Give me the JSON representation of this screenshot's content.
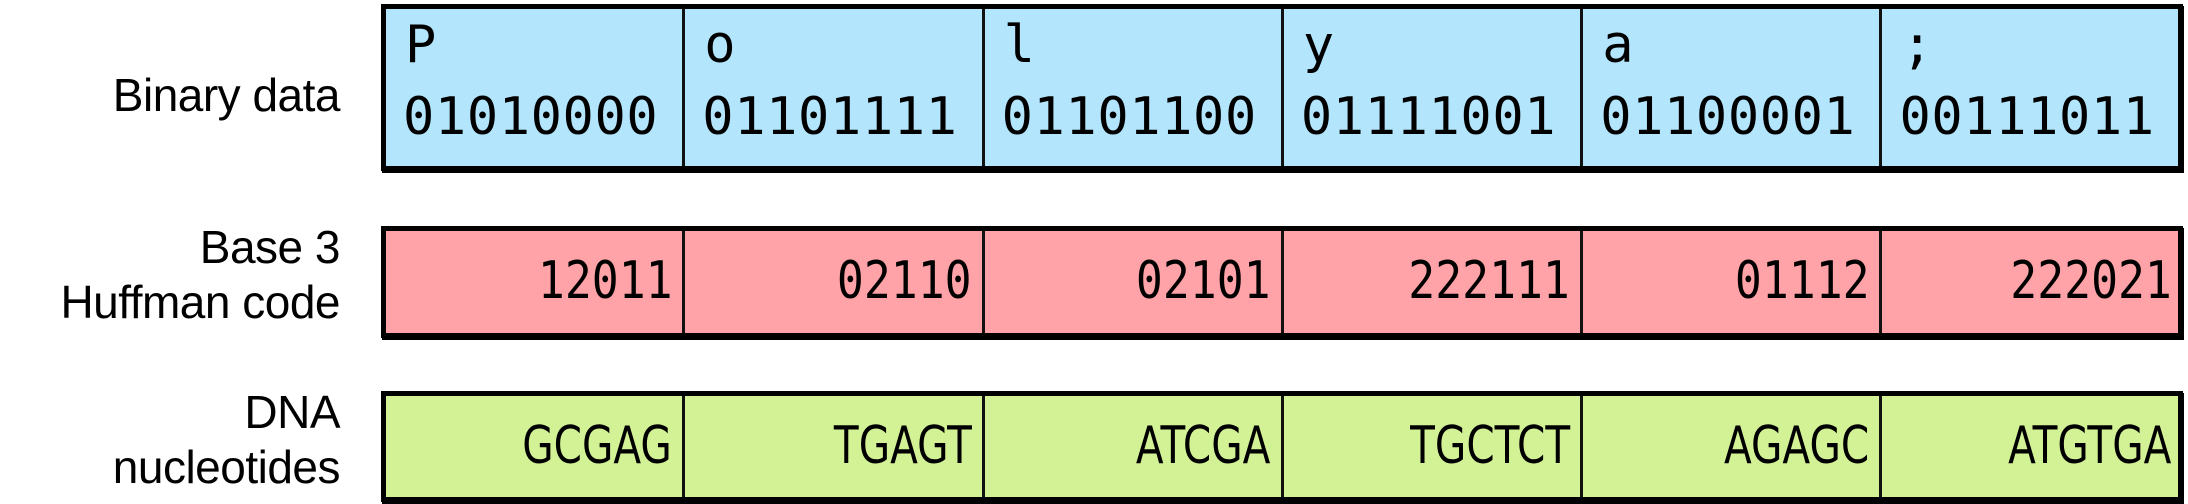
{
  "rows": {
    "binary": {
      "label_lines": [
        "Binary data"
      ],
      "color": "#b3e5fc",
      "cells": [
        {
          "char": "P",
          "bits": "01010000"
        },
        {
          "char": "o",
          "bits": "01101111"
        },
        {
          "char": "l",
          "bits": "01101100"
        },
        {
          "char": "y",
          "bits": "01111001"
        },
        {
          "char": "a",
          "bits": "01100001"
        },
        {
          "char": ";",
          "bits": "00111011"
        }
      ]
    },
    "huffman": {
      "label_lines": [
        "Base 3",
        "Huffman code"
      ],
      "color": "#ffa3a8",
      "cells": [
        "12011",
        "02110",
        "02101",
        "222111",
        "01112",
        "222021"
      ]
    },
    "dna": {
      "label_lines": [
        "DNA",
        "nucleotides"
      ],
      "color": "#d3f295",
      "cells": [
        "GCGAG",
        "TGAGT",
        "ATCGA",
        "TGCTCT",
        "AGAGC",
        "ATGTGA"
      ]
    }
  }
}
